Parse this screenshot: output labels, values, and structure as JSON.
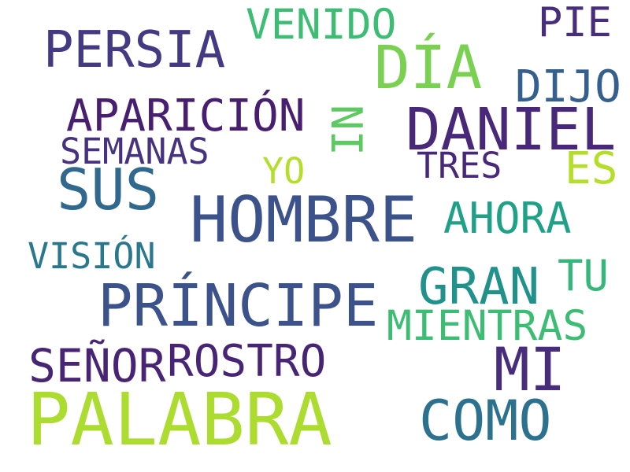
{
  "word_cloud": {
    "words": [
      {
        "text": "PALABRA",
        "color": "#addc30"
      },
      {
        "text": "HOMBRE",
        "color": "#3b528b"
      },
      {
        "text": "PRÍNCIPE",
        "color": "#3b528b"
      },
      {
        "text": "DANIEL",
        "color": "#482878"
      },
      {
        "text": "DÍA",
        "color": "#7ad151"
      },
      {
        "text": "MI",
        "color": "#472d7b"
      },
      {
        "text": "COMO",
        "color": "#2c728e"
      },
      {
        "text": "SUS",
        "color": "#31688e"
      },
      {
        "text": "PERSIA",
        "color": "#443983"
      },
      {
        "text": "GRAN",
        "color": "#21918c"
      },
      {
        "text": "APARICIÓN",
        "color": "#481f70"
      },
      {
        "text": "ROSTRO",
        "color": "#482475"
      },
      {
        "text": "SEÑOR",
        "color": "#482475"
      },
      {
        "text": "MIENTRAS",
        "color": "#3dbc74"
      },
      {
        "text": "AHORA",
        "color": "#1fa188"
      },
      {
        "text": "VENIDO",
        "color": "#3dbc74"
      },
      {
        "text": "DIJO",
        "color": "#355f8d"
      },
      {
        "text": "PIE",
        "color": "#472d7b"
      },
      {
        "text": "TU",
        "color": "#35b779"
      },
      {
        "text": "ES",
        "color": "#b5de2b"
      },
      {
        "text": "SEMANAS",
        "color": "#46327e"
      },
      {
        "text": "VISIÓN",
        "color": "#2a788e"
      },
      {
        "text": "TRES",
        "color": "#482878"
      },
      {
        "text": "YO",
        "color": "#b5de2b"
      },
      {
        "text": "NI",
        "color": "#5ec962"
      }
    ]
  }
}
